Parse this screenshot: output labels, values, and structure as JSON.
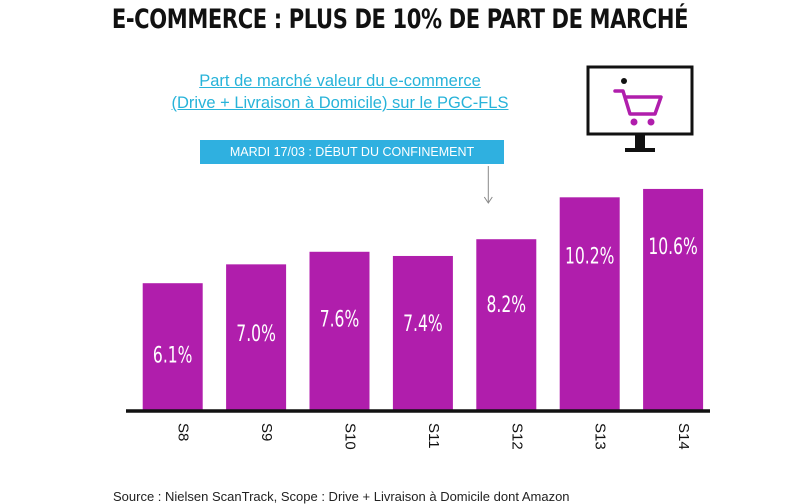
{
  "header": {
    "headline": "E-COMMERCE : PLUS DE 10% DE PART DE MARCHÉ"
  },
  "subtitle": {
    "line1": "Part de marché  valeur du e-commerce",
    "line2": "(Drive + Livraison à Domicile) sur le PGC-FLS"
  },
  "annotation": {
    "label": "MARDI 17/03 : DÉBUT DU CONFINEMENT",
    "target_category": "S12"
  },
  "icon": {
    "name": "shopping-cart-monitor-icon"
  },
  "source": "Source : Nielsen ScanTrack, Scope : Drive + Livraison à Domicile dont Amazon",
  "chart_data": {
    "type": "bar",
    "title": "",
    "xlabel": "",
    "ylabel": "",
    "categories": [
      "S8",
      "S9",
      "S10",
      "S11",
      "S12",
      "S13",
      "S14"
    ],
    "values": [
      6.1,
      7.0,
      7.6,
      7.4,
      8.2,
      10.2,
      10.6
    ],
    "value_labels": [
      "6.1%",
      "7.0%",
      "7.6%",
      "7.4%",
      "8.2%",
      "10.2%",
      "10.6%"
    ],
    "ylim": [
      0,
      12
    ],
    "grid": false,
    "bar_color": "#b01eac"
  }
}
